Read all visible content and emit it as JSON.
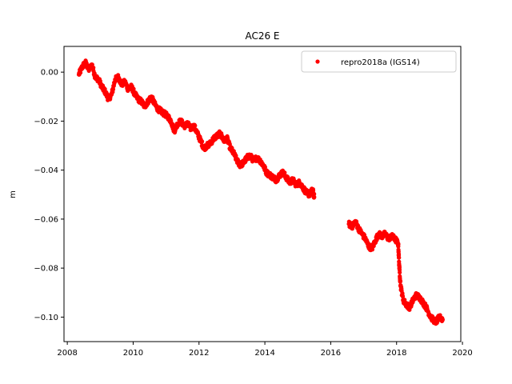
{
  "chart_data": {
    "type": "scatter",
    "title": "AC26 E",
    "xlabel": "",
    "ylabel": "m",
    "xlim": [
      2007.9,
      2019.95
    ],
    "ylim": [
      -0.11,
      0.0105
    ],
    "xticks": [
      2008,
      2010,
      2012,
      2014,
      2016,
      2018,
      2020
    ],
    "yticks": [
      0.0,
      -0.02,
      -0.04,
      -0.06,
      -0.08,
      -0.1
    ],
    "ytick_labels": [
      "0.00",
      "−0.02",
      "−0.04",
      "−0.06",
      "−0.08",
      "−0.10"
    ],
    "grid": false,
    "legend": {
      "position": "top-right"
    },
    "series": [
      {
        "name": "repro2018a (IGS14)",
        "color": "#ff0000",
        "marker": "circle",
        "points": [
          [
            2008.35,
            -0.001
          ],
          [
            2008.45,
            0.002
          ],
          [
            2008.55,
            0.004
          ],
          [
            2008.65,
            0.001
          ],
          [
            2008.75,
            0.003
          ],
          [
            2008.85,
            -0.002
          ],
          [
            2008.95,
            -0.003
          ],
          [
            2009.05,
            -0.006
          ],
          [
            2009.15,
            -0.008
          ],
          [
            2009.25,
            -0.011
          ],
          [
            2009.35,
            -0.009
          ],
          [
            2009.45,
            -0.003
          ],
          [
            2009.55,
            -0.002
          ],
          [
            2009.65,
            -0.005
          ],
          [
            2009.75,
            -0.004
          ],
          [
            2009.85,
            -0.007
          ],
          [
            2009.95,
            -0.006
          ],
          [
            2010.05,
            -0.009
          ],
          [
            2010.15,
            -0.011
          ],
          [
            2010.25,
            -0.012
          ],
          [
            2010.35,
            -0.014
          ],
          [
            2010.45,
            -0.012
          ],
          [
            2010.55,
            -0.01
          ],
          [
            2010.65,
            -0.013
          ],
          [
            2010.75,
            -0.015
          ],
          [
            2010.85,
            -0.016
          ],
          [
            2010.95,
            -0.017
          ],
          [
            2011.05,
            -0.018
          ],
          [
            2011.15,
            -0.02
          ],
          [
            2011.25,
            -0.024
          ],
          [
            2011.35,
            -0.021
          ],
          [
            2011.45,
            -0.02
          ],
          [
            2011.55,
            -0.022
          ],
          [
            2011.65,
            -0.021
          ],
          [
            2011.75,
            -0.023
          ],
          [
            2011.85,
            -0.022
          ],
          [
            2011.95,
            -0.025
          ],
          [
            2012.05,
            -0.028
          ],
          [
            2012.15,
            -0.031
          ],
          [
            2012.25,
            -0.03
          ],
          [
            2012.35,
            -0.029
          ],
          [
            2012.45,
            -0.027
          ],
          [
            2012.55,
            -0.026
          ],
          [
            2012.65,
            -0.025
          ],
          [
            2012.75,
            -0.028
          ],
          [
            2012.85,
            -0.027
          ],
          [
            2012.95,
            -0.031
          ],
          [
            2013.05,
            -0.033
          ],
          [
            2013.15,
            -0.036
          ],
          [
            2013.25,
            -0.038
          ],
          [
            2013.35,
            -0.037
          ],
          [
            2013.45,
            -0.035
          ],
          [
            2013.55,
            -0.034
          ],
          [
            2013.65,
            -0.036
          ],
          [
            2013.75,
            -0.035
          ],
          [
            2013.85,
            -0.036
          ],
          [
            2013.95,
            -0.038
          ],
          [
            2014.05,
            -0.041
          ],
          [
            2014.15,
            -0.042
          ],
          [
            2014.25,
            -0.043
          ],
          [
            2014.35,
            -0.044
          ],
          [
            2014.45,
            -0.042
          ],
          [
            2014.55,
            -0.041
          ],
          [
            2014.65,
            -0.043
          ],
          [
            2014.75,
            -0.045
          ],
          [
            2014.85,
            -0.044
          ],
          [
            2014.95,
            -0.046
          ],
          [
            2015.05,
            -0.045
          ],
          [
            2015.15,
            -0.047
          ],
          [
            2015.25,
            -0.049
          ],
          [
            2015.35,
            -0.05
          ],
          [
            2015.45,
            -0.048
          ],
          [
            2015.5,
            -0.051
          ],
          [
            2016.55,
            -0.062
          ],
          [
            2016.65,
            -0.063
          ],
          [
            2016.75,
            -0.061
          ],
          [
            2016.85,
            -0.064
          ],
          [
            2016.95,
            -0.066
          ],
          [
            2017.05,
            -0.068
          ],
          [
            2017.15,
            -0.071
          ],
          [
            2017.25,
            -0.072
          ],
          [
            2017.35,
            -0.069
          ],
          [
            2017.45,
            -0.066
          ],
          [
            2017.55,
            -0.067
          ],
          [
            2017.65,
            -0.066
          ],
          [
            2017.75,
            -0.068
          ],
          [
            2017.85,
            -0.067
          ],
          [
            2017.95,
            -0.068
          ],
          [
            2018.05,
            -0.07
          ],
          [
            2018.08,
            -0.079
          ],
          [
            2018.12,
            -0.087
          ],
          [
            2018.2,
            -0.093
          ],
          [
            2018.3,
            -0.095
          ],
          [
            2018.4,
            -0.096
          ],
          [
            2018.5,
            -0.093
          ],
          [
            2018.6,
            -0.091
          ],
          [
            2018.7,
            -0.092
          ],
          [
            2018.8,
            -0.094
          ],
          [
            2018.9,
            -0.096
          ],
          [
            2019.0,
            -0.099
          ],
          [
            2019.1,
            -0.101
          ],
          [
            2019.2,
            -0.102
          ],
          [
            2019.3,
            -0.1
          ],
          [
            2019.4,
            -0.101
          ]
        ]
      }
    ]
  }
}
